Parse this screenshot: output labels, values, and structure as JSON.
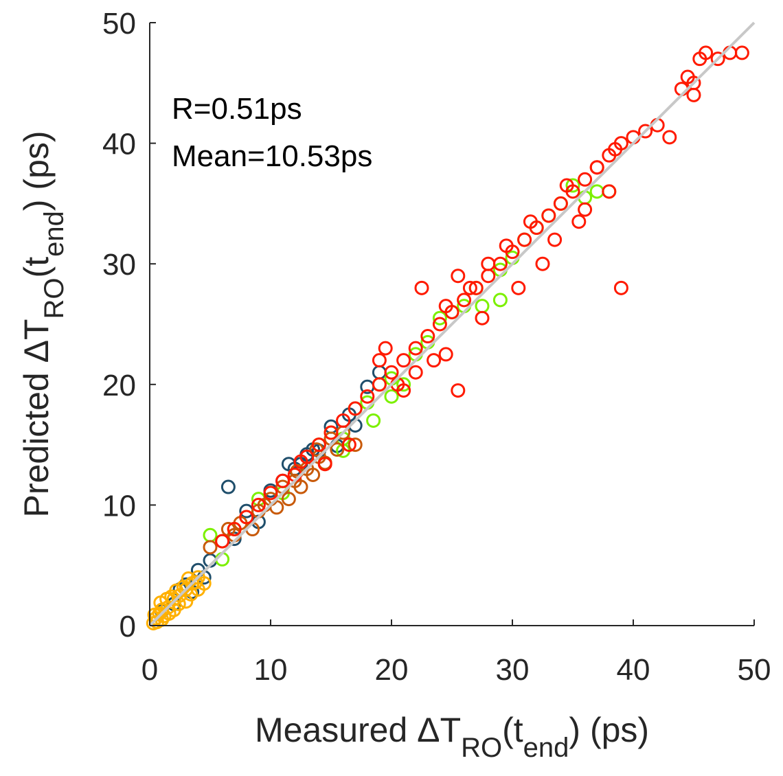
{
  "chart_data": {
    "type": "scatter",
    "xlabel": {
      "main": "Measured ΔT",
      "sub1": "RO",
      "mid": "(t",
      "sub2": "end",
      "tail": ") (ps)"
    },
    "ylabel": {
      "main": "Predicted ΔT",
      "sub1": "RO",
      "mid": "(t",
      "sub2": "end",
      "tail": ") (ps)"
    },
    "xlim": [
      0,
      50
    ],
    "ylim": [
      0,
      50
    ],
    "xticks": [
      "0",
      "10",
      "20",
      "30",
      "40",
      "50"
    ],
    "yticks": [
      "0",
      "10",
      "20",
      "30",
      "40",
      "50"
    ],
    "annotations": {
      "r": "R=0.51ps",
      "mean": "Mean=10.53ps"
    },
    "reference_line": {
      "from": [
        0,
        0
      ],
      "to": [
        50,
        50
      ],
      "color": "#c8c8c8"
    },
    "series": [
      {
        "name": "dark-teal",
        "color": "#1f4e6b",
        "points": [
          [
            1,
            1.2
          ],
          [
            2,
            1.8
          ],
          [
            3,
            3.4
          ],
          [
            4,
            4.6
          ],
          [
            4.5,
            4
          ],
          [
            5,
            5.4
          ],
          [
            6.5,
            11.5
          ],
          [
            8,
            9.5
          ],
          [
            10,
            11.2
          ],
          [
            11,
            12
          ],
          [
            12,
            13
          ],
          [
            13,
            14.2
          ],
          [
            14,
            14.5
          ],
          [
            15,
            16.5
          ],
          [
            16.5,
            17.5
          ],
          [
            18,
            19.8
          ],
          [
            19,
            21
          ],
          [
            3.5,
            2.8
          ],
          [
            2.5,
            3
          ],
          [
            7,
            7.2
          ],
          [
            9,
            8.6
          ],
          [
            12.5,
            13.4
          ],
          [
            15.5,
            14.9
          ],
          [
            17,
            16.6
          ],
          [
            11.5,
            13.4
          ],
          [
            13.5,
            14.6
          ]
        ]
      },
      {
        "name": "green",
        "color": "#7cf000",
        "points": [
          [
            5,
            7.5
          ],
          [
            6,
            5.5
          ],
          [
            7,
            8
          ],
          [
            9,
            10.5
          ],
          [
            11,
            11
          ],
          [
            14,
            15
          ],
          [
            15,
            16
          ],
          [
            16,
            15.5
          ],
          [
            17,
            18
          ],
          [
            18,
            18.5
          ],
          [
            19,
            20
          ],
          [
            20,
            20.5
          ],
          [
            21,
            20
          ],
          [
            22,
            22.5
          ],
          [
            24,
            25.5
          ],
          [
            26,
            26.5
          ],
          [
            27,
            28
          ],
          [
            29,
            29.5
          ],
          [
            30,
            30.5
          ],
          [
            31,
            32
          ],
          [
            32,
            33
          ],
          [
            33,
            34
          ],
          [
            34,
            35
          ],
          [
            35,
            36.5
          ],
          [
            36,
            35.5
          ],
          [
            37,
            36
          ],
          [
            38,
            36
          ],
          [
            29,
            27
          ],
          [
            27.5,
            26.5
          ],
          [
            16,
            14.5
          ],
          [
            18.5,
            17
          ],
          [
            23,
            23.5
          ],
          [
            25,
            26
          ],
          [
            20,
            19
          ]
        ]
      },
      {
        "name": "brown",
        "color": "#c85a0a",
        "points": [
          [
            5,
            6.5
          ],
          [
            6,
            7
          ],
          [
            6.5,
            8
          ],
          [
            7,
            7.5
          ],
          [
            8,
            9
          ],
          [
            8.5,
            8
          ],
          [
            9,
            9.5
          ],
          [
            10,
            10.5
          ],
          [
            10.5,
            9.8
          ],
          [
            11,
            11.5
          ],
          [
            11.5,
            10.5
          ],
          [
            12,
            12
          ],
          [
            12.5,
            11.5
          ],
          [
            13,
            13
          ],
          [
            13.5,
            12.5
          ],
          [
            14,
            14
          ],
          [
            14.5,
            13.5
          ],
          [
            15,
            15.5
          ],
          [
            15.5,
            14.6
          ],
          [
            16,
            16
          ],
          [
            17,
            15
          ],
          [
            7.5,
            8.5
          ],
          [
            9.5,
            10
          ],
          [
            12.2,
            12.8
          ],
          [
            13.8,
            14.6
          ]
        ]
      },
      {
        "name": "orange",
        "color": "#ffb000",
        "points": [
          [
            0.3,
            0.2
          ],
          [
            0.5,
            0.6
          ],
          [
            0.6,
            0.3
          ],
          [
            0.8,
            1
          ],
          [
            1,
            0.5
          ],
          [
            1,
            1.3
          ],
          [
            1.2,
            0.8
          ],
          [
            1.5,
            1.5
          ],
          [
            1.6,
            1
          ],
          [
            2,
            2.2
          ],
          [
            2,
            1.3
          ],
          [
            2.4,
            1.8
          ],
          [
            2.5,
            2.5
          ],
          [
            3,
            2
          ],
          [
            3,
            3
          ],
          [
            3.4,
            2.6
          ],
          [
            3.5,
            3.5
          ],
          [
            4,
            3
          ],
          [
            4,
            4
          ],
          [
            4.5,
            3.5
          ],
          [
            0.4,
            0.9
          ],
          [
            1.8,
            2.4
          ],
          [
            2.8,
            3.2
          ],
          [
            3.8,
            3.6
          ],
          [
            0.9,
            1.9
          ],
          [
            1.4,
            2.2
          ],
          [
            2.2,
            2.9
          ],
          [
            3.2,
            3.9
          ]
        ]
      },
      {
        "name": "red",
        "color": "#ff1a00",
        "points": [
          [
            6,
            7
          ],
          [
            7,
            8
          ],
          [
            8,
            9
          ],
          [
            9,
            10
          ],
          [
            10,
            11
          ],
          [
            11,
            12
          ],
          [
            12,
            12.5
          ],
          [
            13,
            14
          ],
          [
            14,
            15
          ],
          [
            15,
            16
          ],
          [
            16,
            17
          ],
          [
            17,
            18
          ],
          [
            18,
            19
          ],
          [
            19,
            20
          ],
          [
            19.5,
            23
          ],
          [
            20,
            21
          ],
          [
            21,
            22
          ],
          [
            22,
            23
          ],
          [
            22.5,
            28
          ],
          [
            23,
            24
          ],
          [
            24,
            25
          ],
          [
            24.5,
            22.5
          ],
          [
            25,
            26
          ],
          [
            25.5,
            29
          ],
          [
            25.5,
            19.5
          ],
          [
            26,
            27
          ],
          [
            27,
            28
          ],
          [
            28,
            29
          ],
          [
            29,
            30
          ],
          [
            30,
            31
          ],
          [
            31,
            32
          ],
          [
            32,
            33
          ],
          [
            33,
            34
          ],
          [
            34,
            35
          ],
          [
            35,
            36
          ],
          [
            36,
            37
          ],
          [
            37,
            38
          ],
          [
            38,
            39
          ],
          [
            38.5,
            39.5
          ],
          [
            39,
            28
          ],
          [
            39,
            40
          ],
          [
            40,
            40.5
          ],
          [
            41,
            41
          ],
          [
            42,
            41.5
          ],
          [
            43,
            40.5
          ],
          [
            44,
            44.5
          ],
          [
            45,
            45
          ],
          [
            45.5,
            47
          ],
          [
            46,
            47.5
          ],
          [
            47,
            47
          ],
          [
            48,
            47.5
          ],
          [
            49,
            47.5
          ],
          [
            45,
            44
          ],
          [
            44.5,
            45.5
          ],
          [
            19,
            22
          ],
          [
            23.5,
            22
          ],
          [
            24.5,
            26.5
          ],
          [
            21,
            19.5
          ],
          [
            30.5,
            28
          ],
          [
            32.5,
            30
          ],
          [
            33.5,
            32
          ],
          [
            35.5,
            33.5
          ],
          [
            37,
            38
          ],
          [
            38,
            36
          ],
          [
            36,
            34.5
          ],
          [
            28,
            30
          ],
          [
            26.5,
            28
          ],
          [
            29.5,
            31.5
          ],
          [
            34.5,
            36.5
          ],
          [
            31.5,
            33.5
          ],
          [
            27.5,
            25.5
          ],
          [
            16.5,
            15
          ],
          [
            20.5,
            20
          ],
          [
            22,
            21
          ],
          [
            14.5,
            13.4
          ],
          [
            12.5,
            13.6
          ]
        ]
      }
    ]
  }
}
